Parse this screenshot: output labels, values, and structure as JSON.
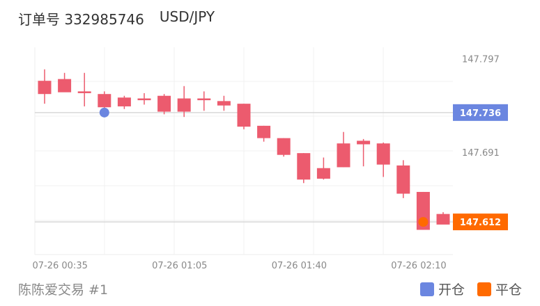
{
  "header": {
    "order_label": "订单号 332985746",
    "symbol": "USD/JPY"
  },
  "footer": {
    "account": "陈陈爱交易 #1"
  },
  "legend": [
    {
      "label": "开仓",
      "color": "#6b86e0"
    },
    {
      "label": "平仓",
      "color": "#ff6a00"
    }
  ],
  "colors": {
    "up": "#00b894",
    "down": "#ec5b6e"
  },
  "chart_data": {
    "type": "candlestick",
    "y_ticks": [
      "147.797",
      "147.691"
    ],
    "y_tick_values": [
      147.797,
      147.691
    ],
    "x_ticks": [
      "07-26 00:35",
      "07-26 01:05",
      "07-26 01:40",
      "07-26 02:10"
    ],
    "x_tick_indices": [
      1.3,
      7.3,
      13.3,
      19.3
    ],
    "ylim": [
      147.575,
      147.81
    ],
    "candles": [
      {
        "o": 147.757,
        "h": 147.785,
        "l": 147.746,
        "c": 147.772
      },
      {
        "o": 147.759,
        "h": 147.781,
        "l": 147.76,
        "c": 147.774
      },
      {
        "o": 147.758,
        "h": 147.781,
        "l": 147.743,
        "c": 147.76
      },
      {
        "o": 147.742,
        "h": 147.76,
        "l": 147.737,
        "c": 147.757
      },
      {
        "o": 147.743,
        "h": 147.755,
        "l": 147.74,
        "c": 147.753
      },
      {
        "o": 147.75,
        "h": 147.758,
        "l": 147.745,
        "c": 147.752
      },
      {
        "o": 147.737,
        "h": 147.757,
        "l": 147.734,
        "c": 147.755
      },
      {
        "o": 147.737,
        "h": 147.766,
        "l": 147.731,
        "c": 147.752
      },
      {
        "o": 147.75,
        "h": 147.76,
        "l": 147.738,
        "c": 147.752
      },
      {
        "o": 147.744,
        "h": 147.755,
        "l": 147.738,
        "c": 147.749
      },
      {
        "o": 147.72,
        "h": 147.746,
        "l": 147.717,
        "c": 147.746
      },
      {
        "o": 147.707,
        "h": 147.721,
        "l": 147.703,
        "c": 147.721
      },
      {
        "o": 147.688,
        "h": 147.707,
        "l": 147.686,
        "c": 147.707
      },
      {
        "o": 147.66,
        "h": 147.69,
        "l": 147.656,
        "c": 147.69
      },
      {
        "o": 147.661,
        "h": 147.685,
        "l": 147.66,
        "c": 147.673
      },
      {
        "o": 147.674,
        "h": 147.714,
        "l": 147.674,
        "c": 147.701
      },
      {
        "o": 147.7,
        "h": 147.706,
        "l": 147.675,
        "c": 147.704
      },
      {
        "o": 147.677,
        "h": 147.702,
        "l": 147.663,
        "c": 147.701
      },
      {
        "o": 147.644,
        "h": 147.682,
        "l": 147.639,
        "c": 147.676
      },
      {
        "o": 147.603,
        "h": 147.646,
        "l": 147.603,
        "c": 147.646
      },
      {
        "o": 147.609,
        "h": 147.623,
        "l": 147.61,
        "c": 147.621
      }
    ],
    "open_price": 147.736,
    "close_price": 147.612,
    "open_marker": {
      "index": 3,
      "price": 147.736
    },
    "close_marker": {
      "index": 19,
      "price": 147.612
    },
    "price_tags": [
      {
        "text": "147.736",
        "value": 147.736,
        "color": "#6b86e0"
      },
      {
        "text": "147.612",
        "value": 147.612,
        "color": "#ff6a00"
      }
    ]
  }
}
